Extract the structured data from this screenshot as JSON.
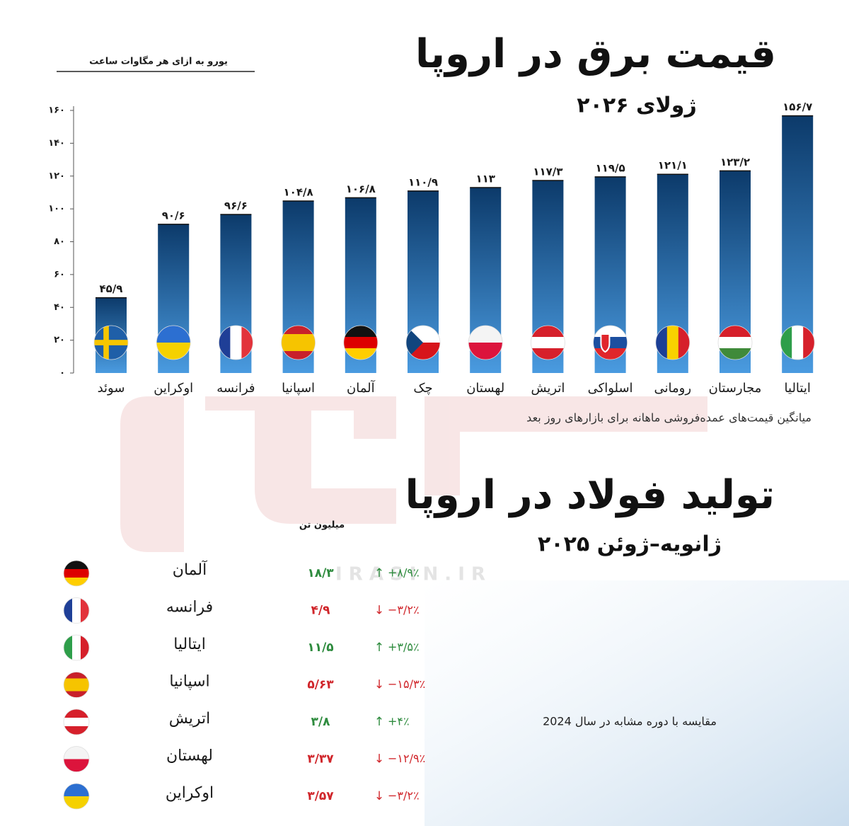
{
  "chart_data": {
    "type": "bar",
    "title": "قیمت برق در اروپا",
    "subtitle": "ژولای ۲۰۲۶",
    "y_label": "یورو به ازای هر مگاوات ساعت",
    "note": "میانگین قیمت‌های عمده‌فروشی ماهانه برای بازارهای روز بعد",
    "categories": [
      "سوئد",
      "اوکراین",
      "فرانسه",
      "اسپانیا",
      "آلمان",
      "چک",
      "لهستان",
      "اتریش",
      "اسلواکی",
      "رومانی",
      "مجارستان",
      "ایتالیا"
    ],
    "values": [
      45.9,
      90.6,
      96.6,
      104.8,
      106.8,
      110.9,
      113,
      117.3,
      119.5,
      121.1,
      123.2,
      156.7
    ],
    "value_labels": [
      "۴۵/۹",
      "۹۰/۶",
      "۹۶/۶",
      "۱۰۴/۸",
      "۱۰۶/۸",
      "۱۱۰/۹",
      "۱۱۳",
      "۱۱۷/۳",
      "۱۱۹/۵",
      "۱۲۱/۱",
      "۱۲۳/۲",
      "۱۵۶/۷"
    ],
    "color": "#0c3a6a",
    "ylim": [
      0,
      160
    ],
    "yticks": [
      {
        "value": 0,
        "label": "۰"
      },
      {
        "value": 20,
        "label": "۲۰"
      },
      {
        "value": 40,
        "label": "۴۰"
      },
      {
        "value": 60,
        "label": "۶۰"
      },
      {
        "value": 80,
        "label": "۸۰"
      },
      {
        "value": 100,
        "label": "۱۰۰"
      },
      {
        "value": 120,
        "label": "۱۲۰"
      },
      {
        "value": 140,
        "label": "۱۴۰"
      },
      {
        "value": 160,
        "label": "۱۶۰"
      }
    ],
    "grid": false
  },
  "steel": {
    "title": "تولید فولاد در اروپا",
    "subtitle": "ژانویه–ژوئن ۲۰۲۵",
    "unit": "میلیون تن",
    "note": "مقایسه با دوره مشابه در سال 2024",
    "rows": [
      {
        "country": "آلمان",
        "value": "۱۸/۳",
        "arrow": "↑",
        "change": "+۸/۹٪",
        "color": "#2e8b3e"
      },
      {
        "country": "فرانسه",
        "value": "۴/۹",
        "arrow": "↓",
        "change": "−۳/۲٪",
        "color": "#d0262b"
      },
      {
        "country": "ایتالیا",
        "value": "۱۱/۵",
        "arrow": "↑",
        "change": "+۳/۵٪",
        "color": "#2e8b3e"
      },
      {
        "country": "اسپانیا",
        "value": "۵/۶۳",
        "arrow": "↓",
        "change": "−۱۵/۳٪",
        "color": "#d0262b"
      },
      {
        "country": "اتریش",
        "value": "۳/۸",
        "arrow": "↑",
        "change": "+۴٪",
        "color": "#2e8b3e"
      },
      {
        "country": "لهستان",
        "value": "۳/۳۷",
        "arrow": "↓",
        "change": "−۱۲/۹٪",
        "color": "#d0262b"
      },
      {
        "country": "اوکراین",
        "value": "۳/۵۷",
        "arrow": "↓",
        "change": "−۳/۲٪",
        "color": "#d0262b"
      }
    ]
  },
  "watermark": "I R A S I N . I R"
}
